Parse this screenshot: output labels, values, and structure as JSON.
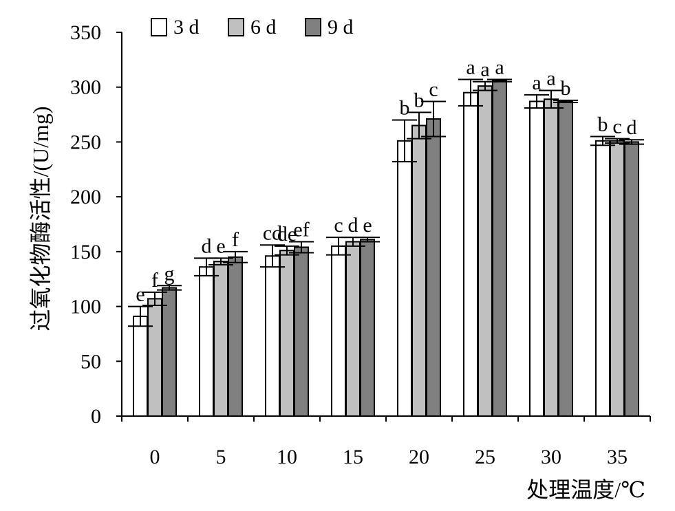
{
  "chart_data": {
    "type": "bar",
    "xlabel": "处理温度/℃",
    "ylabel": "过氧化物酶活性/(U/mg)",
    "ylim": [
      0,
      350
    ],
    "yticks": [
      0,
      50,
      100,
      150,
      200,
      250,
      300,
      350
    ],
    "categories": [
      "0",
      "5",
      "10",
      "15",
      "20",
      "25",
      "30",
      "35"
    ],
    "legend_position": "top-left",
    "grid": false,
    "series": [
      {
        "name": "3 d",
        "color": "#ffffff",
        "values": [
          91,
          136,
          146,
          155,
          251,
          295,
          287,
          251
        ],
        "errors": [
          9,
          8,
          10,
          8,
          19,
          12,
          6,
          4
        ],
        "labels": [
          "e",
          "d",
          "cd",
          "c",
          "b",
          "a",
          "a",
          "b"
        ]
      },
      {
        "name": "6 d",
        "color": "#c0c0c0",
        "values": [
          107,
          141,
          151,
          159,
          265,
          301,
          289,
          251
        ],
        "errors": [
          6,
          3,
          4,
          4,
          12,
          4,
          8,
          2
        ],
        "labels": [
          "f",
          "e",
          "de",
          "d",
          "b",
          "a",
          "a",
          "c"
        ]
      },
      {
        "name": "9 d",
        "color": "#808080",
        "values": [
          117,
          145,
          154,
          161,
          271,
          306,
          287,
          250
        ],
        "errors": [
          2,
          5,
          5,
          2,
          16,
          1,
          1,
          2
        ],
        "labels": [
          "g",
          "f",
          "ef",
          "e",
          "c",
          "a",
          "b",
          "d"
        ]
      }
    ]
  }
}
